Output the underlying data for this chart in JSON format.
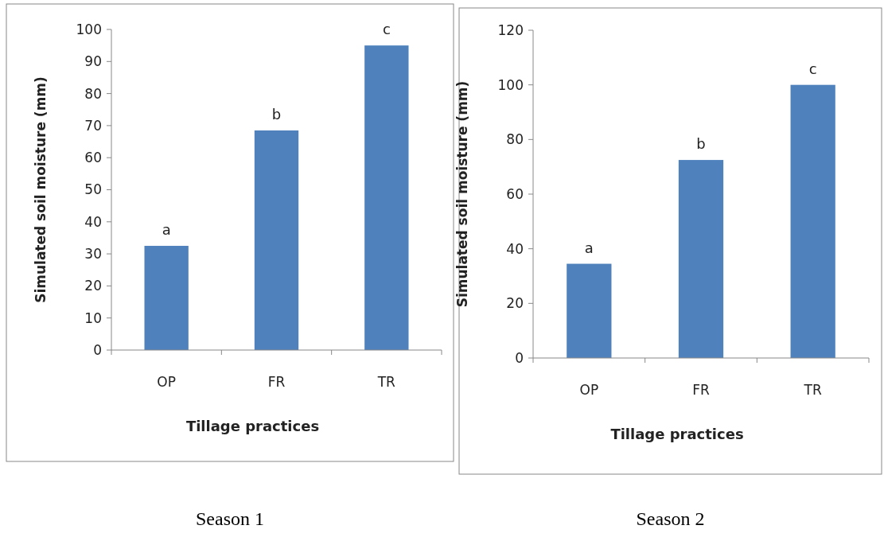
{
  "chart_data": [
    {
      "type": "bar",
      "title": "Season 1",
      "xlabel": "Tillage practices",
      "ylabel": "Simulated soil moisture (mm)",
      "categories": [
        "OP",
        "FR",
        "TR"
      ],
      "values": [
        32.5,
        68.5,
        95
      ],
      "color": "#4f81bd",
      "ylim": [
        0,
        100
      ],
      "yticks": [
        0,
        10,
        20,
        30,
        40,
        50,
        60,
        70,
        80,
        90,
        100
      ],
      "grid": false,
      "annotations": [
        {
          "text": "a",
          "x": "OP",
          "y": 32.5
        },
        {
          "text": "b",
          "x": "FR",
          "y": 68.5
        },
        {
          "text": "c",
          "x": "TR",
          "y": 95
        }
      ]
    },
    {
      "type": "bar",
      "title": "Season 2",
      "xlabel": "Tillage practices",
      "ylabel": "Simulated soil moisture (mm)",
      "categories": [
        "OP",
        "FR",
        "TR"
      ],
      "values": [
        34.5,
        72.5,
        100
      ],
      "color": "#4f81bd",
      "ylim": [
        0,
        120
      ],
      "yticks": [
        0,
        20,
        40,
        60,
        80,
        100,
        120
      ],
      "grid": false,
      "annotations": [
        {
          "text": "a",
          "x": "OP",
          "y": 34.5
        },
        {
          "text": "b",
          "x": "FR",
          "y": 72.5
        },
        {
          "text": "c",
          "x": "TR",
          "y": 100
        }
      ]
    }
  ]
}
